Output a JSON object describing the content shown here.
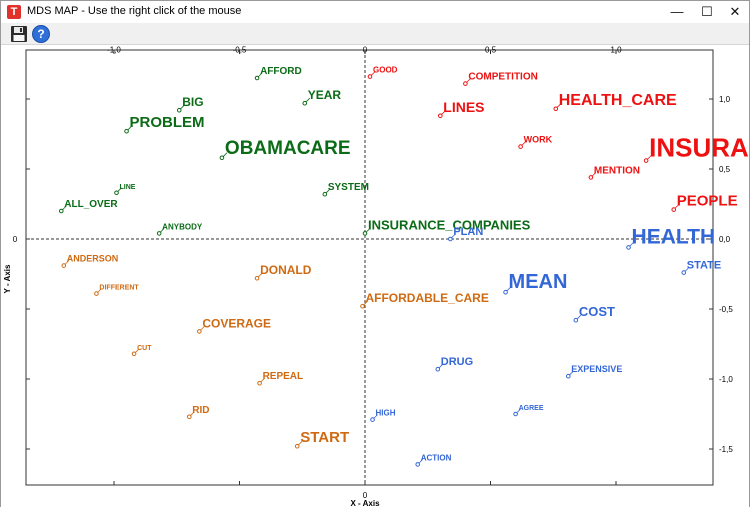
{
  "window": {
    "title": "MDS MAP - Use the right click of the mouse",
    "app_icon_letter": "T",
    "minimize_glyph": "—",
    "maximize_glyph": "☐",
    "close_glyph": "✕"
  },
  "toolbar": {
    "save_icon": "floppy-disk-icon",
    "help_icon": "help-question-icon",
    "help_glyph": "?"
  },
  "colors": {
    "green": "#0b6b16",
    "red": "#ee1111",
    "orange": "#cf6a12",
    "blue": "#3366d6",
    "axis": "#333333",
    "frame": "#333333"
  },
  "chart_data": {
    "type": "scatter",
    "xlabel": "X - Axis",
    "ylabel": "Y - Axis",
    "xlim": [
      -1.35,
      1.35
    ],
    "ylim": [
      -1.75,
      1.4
    ],
    "x_ticks": [
      -1.0,
      -0.5,
      0.0,
      0.5,
      1.0
    ],
    "x_tick_labels": [
      "-1,0",
      "-0,5",
      "0",
      "0,5",
      "1,0"
    ],
    "y_ticks": [
      1.0,
      0.5,
      0.0,
      -0.5,
      -1.0,
      -1.5
    ],
    "y_tick_labels": [
      "1,0",
      "0,5",
      "0,0",
      "-0,5",
      "-1,0",
      "-1,5"
    ],
    "y_zero_label_left": "0",
    "grid": false,
    "origin_lines": "dashed",
    "points": [
      {
        "label": "GOOD",
        "x": 0.02,
        "y": 1.16,
        "cluster": "red",
        "size": 8
      },
      {
        "label": "COMPETITION",
        "x": 0.4,
        "y": 1.11,
        "cluster": "red",
        "size": 10
      },
      {
        "label": "LINES",
        "x": 0.3,
        "y": 0.88,
        "cluster": "red",
        "size": 14
      },
      {
        "label": "HEALTH_CARE",
        "x": 0.76,
        "y": 0.93,
        "cluster": "red",
        "size": 16
      },
      {
        "label": "INSURANCE",
        "x": 1.12,
        "y": 0.56,
        "cluster": "red",
        "size": 26
      },
      {
        "label": "WORK",
        "x": 0.62,
        "y": 0.66,
        "cluster": "red",
        "size": 9
      },
      {
        "label": "MENTION",
        "x": 0.9,
        "y": 0.44,
        "cluster": "red",
        "size": 10
      },
      {
        "label": "PEOPLE",
        "x": 1.23,
        "y": 0.21,
        "cluster": "red",
        "size": 15
      },
      {
        "label": "AFFORD",
        "x": -0.43,
        "y": 1.15,
        "cluster": "green",
        "size": 10
      },
      {
        "label": "BIG",
        "x": -0.74,
        "y": 0.92,
        "cluster": "green",
        "size": 12
      },
      {
        "label": "YEAR",
        "x": -0.24,
        "y": 0.97,
        "cluster": "green",
        "size": 12
      },
      {
        "label": "PROBLEM",
        "x": -0.95,
        "y": 0.77,
        "cluster": "green",
        "size": 15
      },
      {
        "label": "OBAMACARE",
        "x": -0.57,
        "y": 0.58,
        "cluster": "green",
        "size": 19
      },
      {
        "label": "LINE",
        "x": -0.99,
        "y": 0.33,
        "cluster": "green",
        "size": 7
      },
      {
        "label": "SYSTEM",
        "x": -0.16,
        "y": 0.32,
        "cluster": "green",
        "size": 10
      },
      {
        "label": "ALL_OVER",
        "x": -1.21,
        "y": 0.2,
        "cluster": "green",
        "size": 10
      },
      {
        "label": "INSURANCE_COMPANIES",
        "x": 0.0,
        "y": 0.04,
        "cluster": "green",
        "size": 13
      },
      {
        "label": "ANYBODY",
        "x": -0.82,
        "y": 0.04,
        "cluster": "green",
        "size": 8
      },
      {
        "label": "PLAN",
        "x": 0.34,
        "y": 0.0,
        "cluster": "blue",
        "size": 11
      },
      {
        "label": "HEALTH",
        "x": 1.05,
        "y": -0.06,
        "cluster": "blue",
        "size": 21
      },
      {
        "label": "STATE",
        "x": 1.27,
        "y": -0.24,
        "cluster": "blue",
        "size": 11
      },
      {
        "label": "MEAN",
        "x": 0.56,
        "y": -0.38,
        "cluster": "blue",
        "size": 20
      },
      {
        "label": "COST",
        "x": 0.84,
        "y": -0.58,
        "cluster": "blue",
        "size": 13
      },
      {
        "label": "DRUG",
        "x": 0.29,
        "y": -0.93,
        "cluster": "blue",
        "size": 11
      },
      {
        "label": "EXPENSIVE",
        "x": 0.81,
        "y": -0.98,
        "cluster": "blue",
        "size": 9
      },
      {
        "label": "HIGH",
        "x": 0.03,
        "y": -1.29,
        "cluster": "blue",
        "size": 8
      },
      {
        "label": "AGREE",
        "x": 0.6,
        "y": -1.25,
        "cluster": "blue",
        "size": 7
      },
      {
        "label": "ACTION",
        "x": 0.21,
        "y": -1.61,
        "cluster": "blue",
        "size": 8
      },
      {
        "label": "ANDERSON",
        "x": -1.2,
        "y": -0.19,
        "cluster": "orange",
        "size": 9
      },
      {
        "label": "DIFFERENT",
        "x": -1.07,
        "y": -0.39,
        "cluster": "orange",
        "size": 7
      },
      {
        "label": "DONALD",
        "x": -0.43,
        "y": -0.28,
        "cluster": "orange",
        "size": 12
      },
      {
        "label": "AFFORDABLE_CARE",
        "x": -0.01,
        "y": -0.48,
        "cluster": "orange",
        "size": 12
      },
      {
        "label": "COVERAGE",
        "x": -0.66,
        "y": -0.66,
        "cluster": "orange",
        "size": 12
      },
      {
        "label": "CUT",
        "x": -0.92,
        "y": -0.82,
        "cluster": "orange",
        "size": 7
      },
      {
        "label": "REPEAL",
        "x": -0.42,
        "y": -1.03,
        "cluster": "orange",
        "size": 10
      },
      {
        "label": "RID",
        "x": -0.7,
        "y": -1.27,
        "cluster": "orange",
        "size": 10
      },
      {
        "label": "START",
        "x": -0.27,
        "y": -1.48,
        "cluster": "orange",
        "size": 15
      }
    ]
  }
}
